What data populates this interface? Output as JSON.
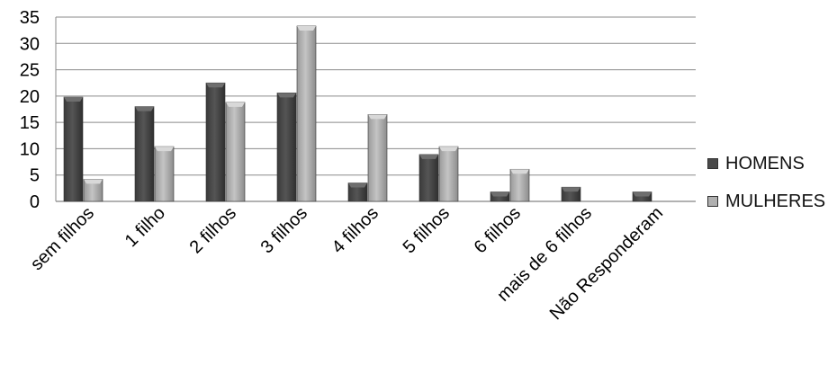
{
  "chart_data": {
    "type": "bar",
    "title": "",
    "xlabel": "",
    "ylabel": "",
    "ylim": [
      0,
      35
    ],
    "yticks": [
      0,
      5,
      10,
      15,
      20,
      25,
      30,
      35
    ],
    "grid": true,
    "legend_position": "right",
    "categories": [
      "sem filhos",
      "1 filho",
      "2 filhos",
      "3 filhos",
      "4 filhos",
      "5 filhos",
      "6 filhos",
      "mais de 6 filhos",
      "Não Responderam"
    ],
    "series": [
      {
        "name": "HOMENS",
        "color": "#4a4a4a",
        "values": [
          19.8,
          18.0,
          22.5,
          20.6,
          3.5,
          8.9,
          1.8,
          2.7,
          1.8
        ]
      },
      {
        "name": "MULHERES",
        "color": "#b0b0b0",
        "values": [
          4.2,
          10.4,
          18.8,
          33.3,
          16.5,
          10.4,
          6.1,
          0,
          0
        ]
      }
    ]
  }
}
